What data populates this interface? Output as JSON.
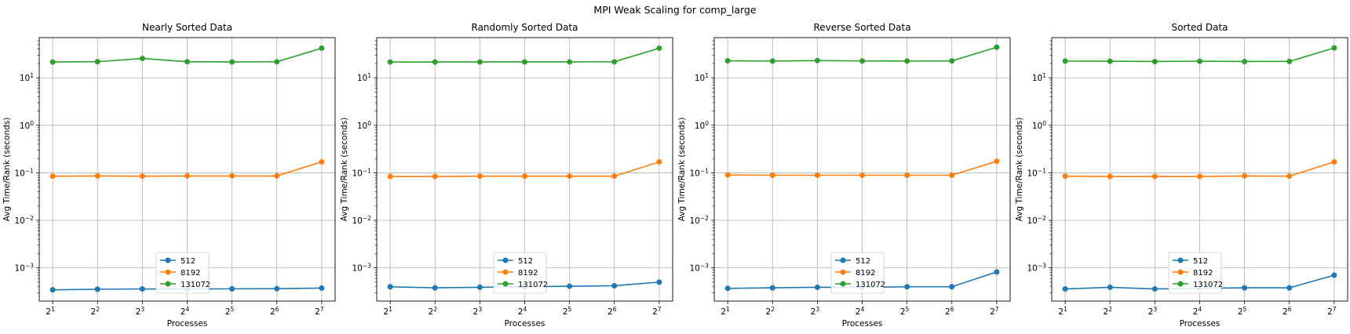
{
  "figure": {
    "title": "MPI Weak Scaling for comp_large"
  },
  "chart_data": [
    {
      "type": "line",
      "title": "Nearly Sorted Data",
      "xlabel": "Processes",
      "ylabel": "Avg Time/Rank (seconds)",
      "x": [
        2,
        4,
        8,
        16,
        32,
        64,
        128
      ],
      "x_tick_base": "2",
      "x_tick_exponents": [
        "1",
        "2",
        "3",
        "4",
        "5",
        "6",
        "7"
      ],
      "x_scale": "log2",
      "y_scale": "log10",
      "ylim": [
        0.0002,
        70
      ],
      "y_tick_base": "10",
      "y_tick_exponents": [
        "−3",
        "−2",
        "−1",
        "0",
        "1"
      ],
      "grid": true,
      "legend": "lower center",
      "series": [
        {
          "name": "512",
          "color": "#1f77b4",
          "values": [
            0.000345,
            0.000355,
            0.00036,
            0.000358,
            0.000362,
            0.000365,
            0.000375
          ]
        },
        {
          "name": "8192",
          "color": "#ff7f0e",
          "values": [
            0.085,
            0.086,
            0.085,
            0.086,
            0.086,
            0.086,
            0.17
          ]
        },
        {
          "name": "131072",
          "color": "#2ca02c",
          "values": [
            21.5,
            21.8,
            25.5,
            21.8,
            21.6,
            21.7,
            42.0
          ]
        }
      ]
    },
    {
      "type": "line",
      "title": "Randomly Sorted Data",
      "xlabel": "Processes",
      "ylabel": "Avg Time/Rank (seconds)",
      "x": [
        2,
        4,
        8,
        16,
        32,
        64,
        128
      ],
      "x_tick_base": "2",
      "x_tick_exponents": [
        "1",
        "2",
        "3",
        "4",
        "5",
        "6",
        "7"
      ],
      "x_scale": "log2",
      "y_scale": "log10",
      "ylim": [
        0.0002,
        70
      ],
      "y_tick_base": "10",
      "y_tick_exponents": [
        "−3",
        "−2",
        "−1",
        "0",
        "1"
      ],
      "grid": true,
      "legend": "lower center",
      "series": [
        {
          "name": "512",
          "color": "#1f77b4",
          "values": [
            0.0004,
            0.00038,
            0.00039,
            0.0004,
            0.00041,
            0.00042,
            0.0005
          ]
        },
        {
          "name": "8192",
          "color": "#ff7f0e",
          "values": [
            0.084,
            0.084,
            0.085,
            0.085,
            0.085,
            0.085,
            0.17
          ]
        },
        {
          "name": "131072",
          "color": "#2ca02c",
          "values": [
            21.5,
            21.5,
            21.6,
            21.6,
            21.6,
            21.7,
            42.0
          ]
        }
      ]
    },
    {
      "type": "line",
      "title": "Reverse Sorted Data",
      "xlabel": "Processes",
      "ylabel": "Avg Time/Rank (seconds)",
      "x": [
        2,
        4,
        8,
        16,
        32,
        64,
        128
      ],
      "x_tick_base": "2",
      "x_tick_exponents": [
        "1",
        "2",
        "3",
        "4",
        "5",
        "6",
        "7"
      ],
      "x_scale": "log2",
      "y_scale": "log10",
      "ylim": [
        0.0002,
        70
      ],
      "y_tick_base": "10",
      "y_tick_exponents": [
        "−3",
        "−2",
        "−1",
        "0",
        "1"
      ],
      "grid": true,
      "legend": "lower center",
      "series": [
        {
          "name": "512",
          "color": "#1f77b4",
          "values": [
            0.00037,
            0.00038,
            0.00039,
            0.00039,
            0.0004,
            0.0004,
            0.00082
          ]
        },
        {
          "name": "8192",
          "color": "#ff7f0e",
          "values": [
            0.09,
            0.089,
            0.089,
            0.089,
            0.089,
            0.089,
            0.175
          ]
        },
        {
          "name": "131072",
          "color": "#2ca02c",
          "values": [
            22.8,
            22.5,
            23.0,
            22.6,
            22.5,
            22.7,
            44.0
          ]
        }
      ]
    },
    {
      "type": "line",
      "title": "Sorted Data",
      "xlabel": "Processes",
      "ylabel": "Avg Time/Rank (seconds)",
      "x": [
        2,
        4,
        8,
        16,
        32,
        64,
        128
      ],
      "x_tick_base": "2",
      "x_tick_exponents": [
        "1",
        "2",
        "3",
        "4",
        "5",
        "6",
        "7"
      ],
      "x_scale": "log2",
      "y_scale": "log10",
      "ylim": [
        0.0002,
        70
      ],
      "y_tick_base": "10",
      "y_tick_exponents": [
        "−3",
        "−2",
        "−1",
        "0",
        "1"
      ],
      "grid": true,
      "legend": "lower center",
      "series": [
        {
          "name": "512",
          "color": "#1f77b4",
          "values": [
            0.00036,
            0.00039,
            0.00036,
            0.00037,
            0.00038,
            0.00038,
            0.0007
          ]
        },
        {
          "name": "8192",
          "color": "#ff7f0e",
          "values": [
            0.085,
            0.084,
            0.084,
            0.084,
            0.086,
            0.085,
            0.17
          ]
        },
        {
          "name": "131072",
          "color": "#2ca02c",
          "values": [
            22.5,
            22.3,
            22.0,
            22.3,
            22.0,
            22.1,
            42.5
          ]
        }
      ]
    }
  ]
}
